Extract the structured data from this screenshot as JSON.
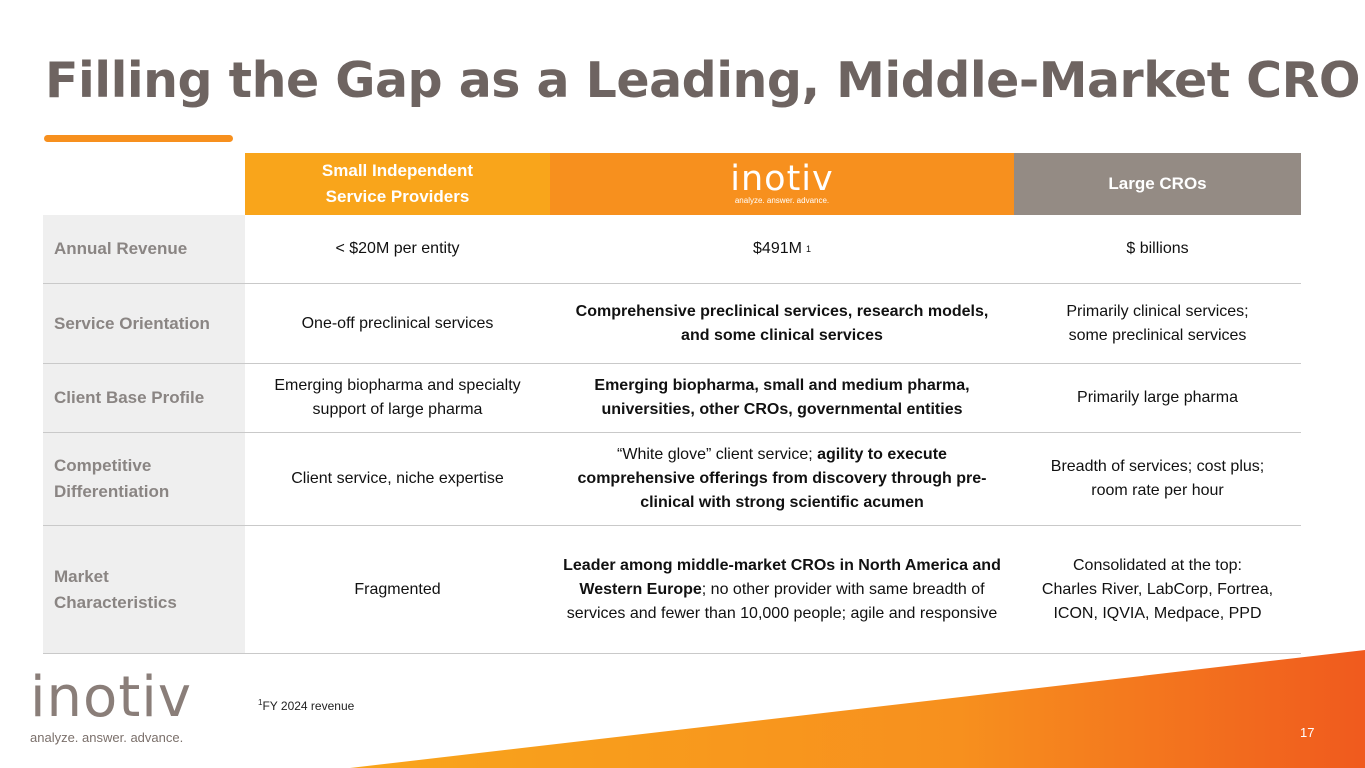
{
  "title": "Filling the Gap as a Leading, Middle-Market CRO",
  "header": {
    "small_line1": "Small Independent",
    "small_line2": "Service Providers",
    "inotiv_logo": "inotiv",
    "inotiv_tagline": "analyze. answer. advance.",
    "large": "Large CROs"
  },
  "rows": [
    {
      "label": "Annual Revenue",
      "small": "< $20M per entity",
      "inotiv": "$491M",
      "inotiv_sup": "1",
      "large": "$ billions"
    },
    {
      "label": "Service Orientation",
      "small": "One-off preclinical services",
      "inotiv_bold": "Comprehensive preclinical services, research models, and some clinical services",
      "large_line1": "Primarily clinical services;",
      "large_line2": "some preclinical services"
    },
    {
      "label": "Client Base Profile",
      "small_line1": "Emerging biopharma and specialty",
      "small_line2": "support of large pharma",
      "inotiv_bold": "Emerging biopharma, small and medium pharma, universities, other CROs, governmental entities",
      "large": "Primarily large pharma"
    },
    {
      "label_line1": "Competitive",
      "label_line2": "Differentiation",
      "small": "Client service, niche expertise",
      "inotiv_plain": "“White glove” client service; ",
      "inotiv_bold": "agility to execute comprehensive offerings from discovery through pre-clinical with strong scientific acumen",
      "large_line1": "Breadth of services; cost plus;",
      "large_line2": "room rate per hour"
    },
    {
      "label_line1": "Market",
      "label_line2": "Characteristics",
      "small": "Fragmented",
      "inotiv_bold": "Leader among middle-market CROs in North America and Western Europe",
      "inotiv_plain": "; no other provider with same breadth of services and fewer than 10,000 people; agile and responsive",
      "large_line1": "Consolidated at the top:",
      "large_line2": "Charles River, LabCorp, Fortrea,",
      "large_line3": "ICON, IQVIA, Medpace, PPD"
    }
  ],
  "footer": {
    "logo": "inotiv",
    "tagline": "analyze. answer. advance.",
    "footnote_sup": "1",
    "footnote": "FY 2024 revenue",
    "page_number": "17"
  },
  "colors": {
    "title": "#6e6461",
    "accent_orange": "#f7901e",
    "small_header": "#f9a51b",
    "large_header": "#948b84",
    "label_bg": "#efefef"
  }
}
